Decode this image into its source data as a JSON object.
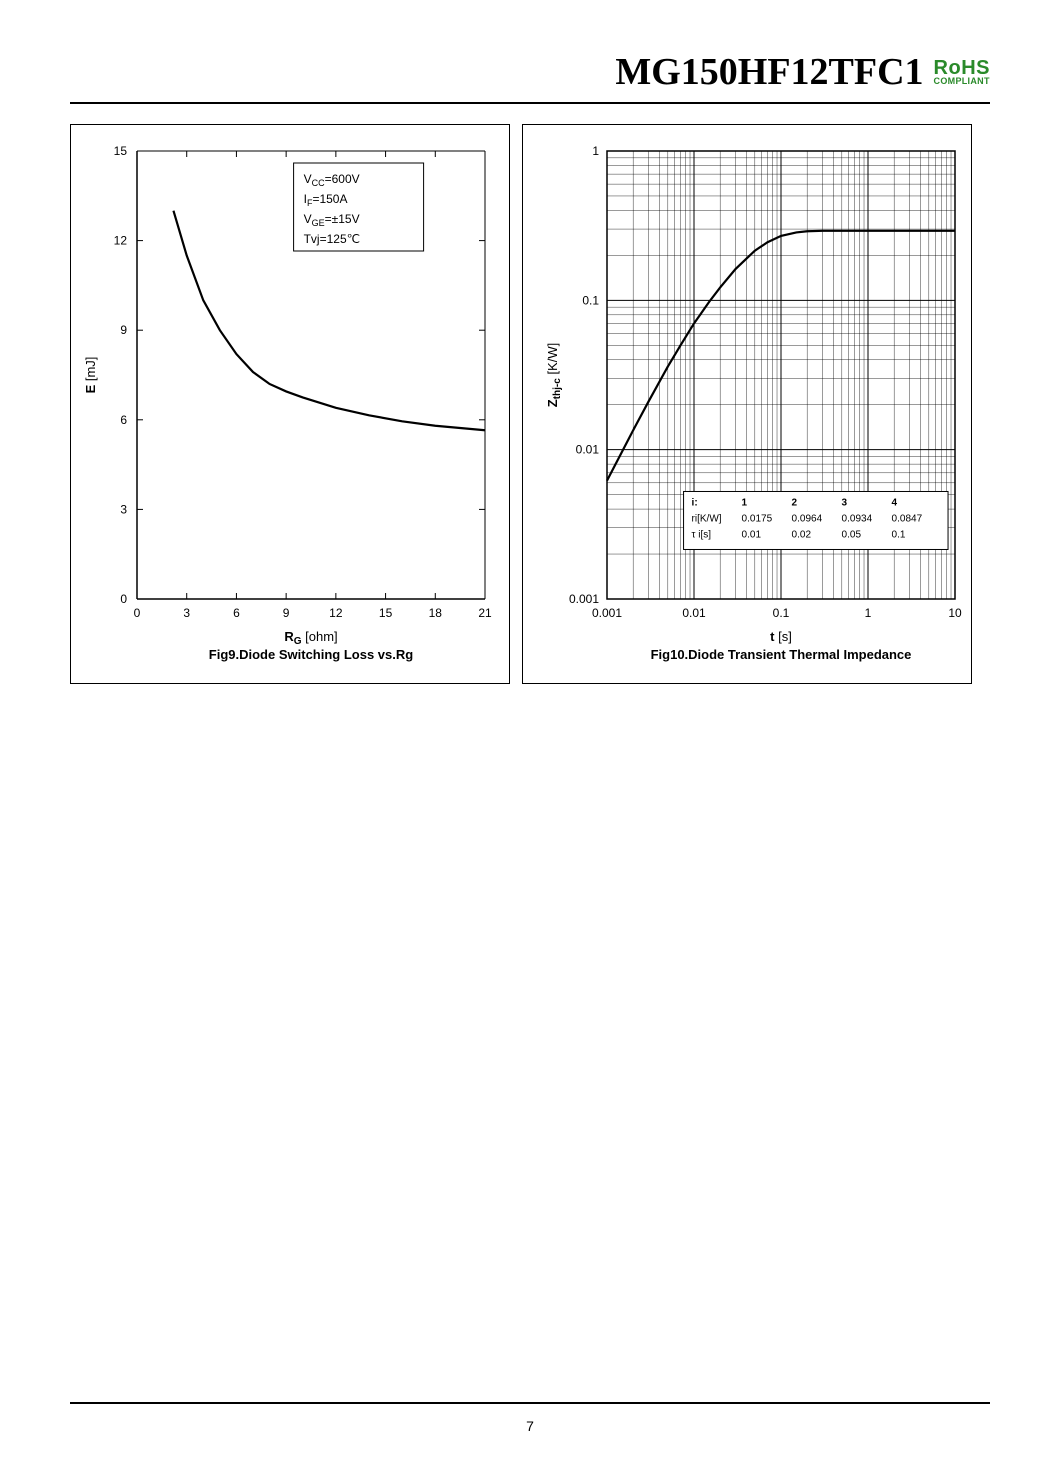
{
  "header": {
    "part_number": "MG150HF12TFC1",
    "rohs_main": "RoHS",
    "rohs_sub": "COMPLIANT"
  },
  "page_number": "7",
  "fig9": {
    "type": "line",
    "caption": "Fig9.Diode Switching Loss vs.Rg",
    "x_axis": {
      "label": "R",
      "sub": "G",
      "unit": "[ohm]",
      "min": 0,
      "max": 21,
      "tick_step": 3,
      "fontsize": 13
    },
    "y_axis": {
      "label": "E",
      "unit": "[mJ]",
      "min": 0,
      "max": 15,
      "tick_step": 3,
      "fontsize": 13
    },
    "conditions": [
      "V_CC=600V",
      "I_F=150A",
      "V_GE=±15V",
      "Tvj=125℃"
    ],
    "curve": [
      {
        "x": 2.2,
        "y": 13.0
      },
      {
        "x": 3.0,
        "y": 11.5
      },
      {
        "x": 4.0,
        "y": 10.0
      },
      {
        "x": 5.0,
        "y": 9.0
      },
      {
        "x": 6.0,
        "y": 8.2
      },
      {
        "x": 7.0,
        "y": 7.6
      },
      {
        "x": 8.0,
        "y": 7.2
      },
      {
        "x": 9.0,
        "y": 6.95
      },
      {
        "x": 10.0,
        "y": 6.75
      },
      {
        "x": 12.0,
        "y": 6.4
      },
      {
        "x": 14.0,
        "y": 6.15
      },
      {
        "x": 16.0,
        "y": 5.95
      },
      {
        "x": 18.0,
        "y": 5.8
      },
      {
        "x": 20.0,
        "y": 5.7
      },
      {
        "x": 21.0,
        "y": 5.65
      }
    ],
    "line_color": "#000000",
    "line_width": 2.2,
    "background_color": "#ffffff"
  },
  "fig10": {
    "type": "line",
    "caption": "Fig10.Diode Transient Thermal Impedance",
    "x_axis": {
      "label": "t",
      "unit": "[s]",
      "scale": "log",
      "min": 0.001,
      "max": 10,
      "ticks": [
        0.001,
        0.01,
        0.1,
        1,
        10
      ],
      "fontsize": 13
    },
    "y_axis": {
      "label": "Z",
      "sub": "thj-c",
      "unit": "[K/W]",
      "scale": "log",
      "min": 0.001,
      "max": 1,
      "ticks": [
        0.001,
        0.01,
        0.1,
        1
      ],
      "fontsize": 13
    },
    "table": {
      "headers": [
        "i:",
        "1",
        "2",
        "3",
        "4"
      ],
      "rows": [
        [
          "ri[K/W]",
          "0.0175",
          "0.0964",
          "0.0934",
          "0.0847"
        ],
        [
          "τ i[s]",
          "0.01",
          "0.02",
          "0.05",
          "0.1"
        ]
      ]
    },
    "curve": [
      {
        "x": 0.001,
        "y": 0.0062
      },
      {
        "x": 0.002,
        "y": 0.0135
      },
      {
        "x": 0.003,
        "y": 0.021
      },
      {
        "x": 0.005,
        "y": 0.036
      },
      {
        "x": 0.007,
        "y": 0.05
      },
      {
        "x": 0.01,
        "y": 0.07
      },
      {
        "x": 0.015,
        "y": 0.098
      },
      {
        "x": 0.02,
        "y": 0.122
      },
      {
        "x": 0.03,
        "y": 0.162
      },
      {
        "x": 0.05,
        "y": 0.215
      },
      {
        "x": 0.07,
        "y": 0.245
      },
      {
        "x": 0.1,
        "y": 0.27
      },
      {
        "x": 0.15,
        "y": 0.285
      },
      {
        "x": 0.2,
        "y": 0.29
      },
      {
        "x": 0.3,
        "y": 0.292
      },
      {
        "x": 0.5,
        "y": 0.292
      },
      {
        "x": 1.0,
        "y": 0.292
      },
      {
        "x": 10.0,
        "y": 0.292
      }
    ],
    "line_color": "#000000",
    "line_width": 2.2,
    "grid_color": "#000000",
    "background_color": "#ffffff"
  }
}
